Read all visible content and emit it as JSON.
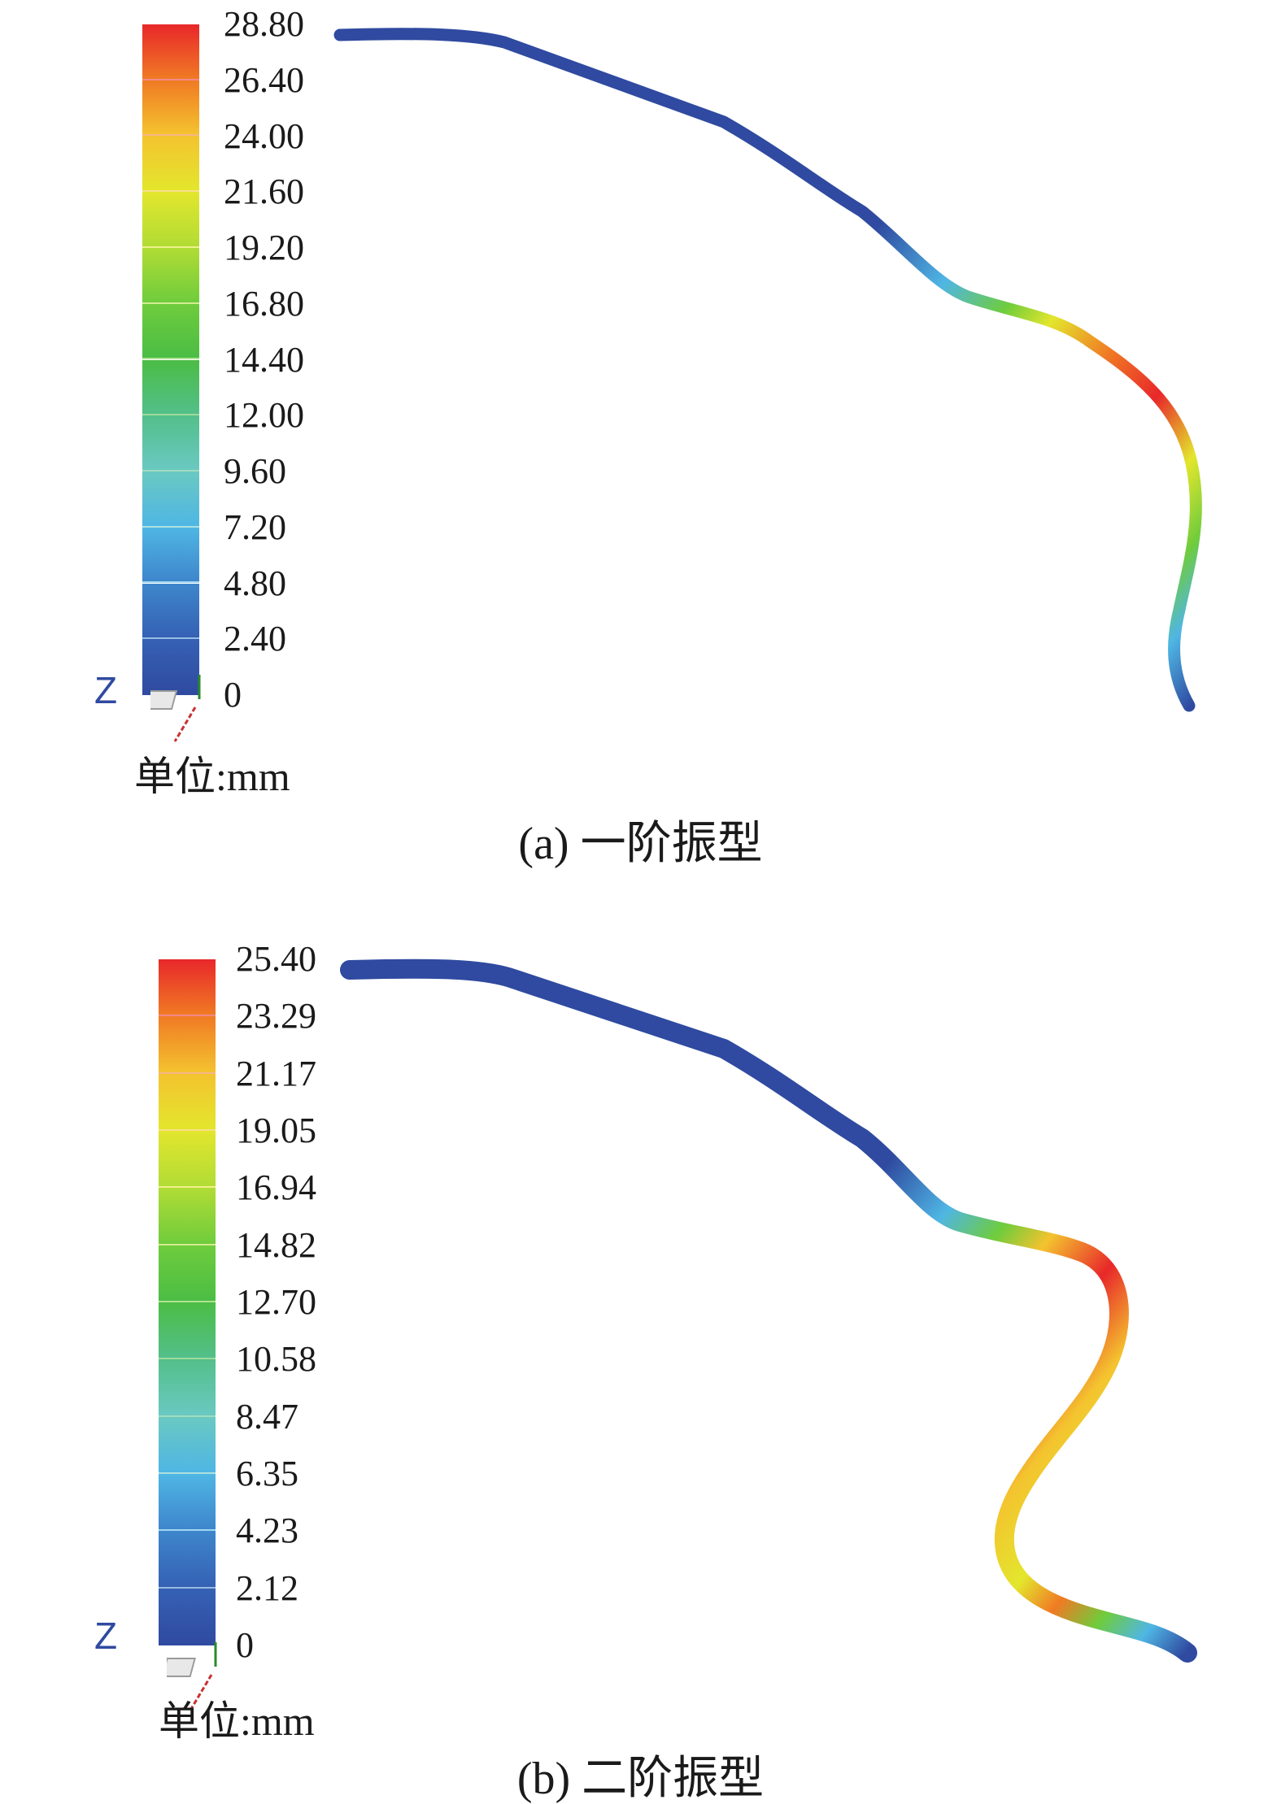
{
  "panels": [
    {
      "id": "a",
      "caption": "(a) 一阶振型",
      "unit_label": "单位:mm",
      "axis_label": "Z",
      "legend_ticks": [
        "28.80",
        "26.40",
        "24.00",
        "21.60",
        "19.20",
        "16.80",
        "14.40",
        "12.00",
        "9.60",
        "7.20",
        "4.80",
        "2.40",
        "0"
      ]
    },
    {
      "id": "b",
      "caption": "(b) 二阶振型",
      "unit_label": "单位:mm",
      "axis_label": "Z",
      "legend_ticks": [
        "25.40",
        "23.29",
        "21.17",
        "19.05",
        "16.94",
        "14.82",
        "12.70",
        "10.58",
        "8.47",
        "6.35",
        "4.23",
        "2.12",
        "0"
      ]
    }
  ],
  "colormap": [
    "#e8272a",
    "#f07a24",
    "#f4c32f",
    "#e3e62d",
    "#b1dc35",
    "#6fcc3c",
    "#4bbd45",
    "#53bf8a",
    "#6ac9c2",
    "#4fb6e4",
    "#3e86cc",
    "#3561b4",
    "#2f4aa0"
  ]
}
